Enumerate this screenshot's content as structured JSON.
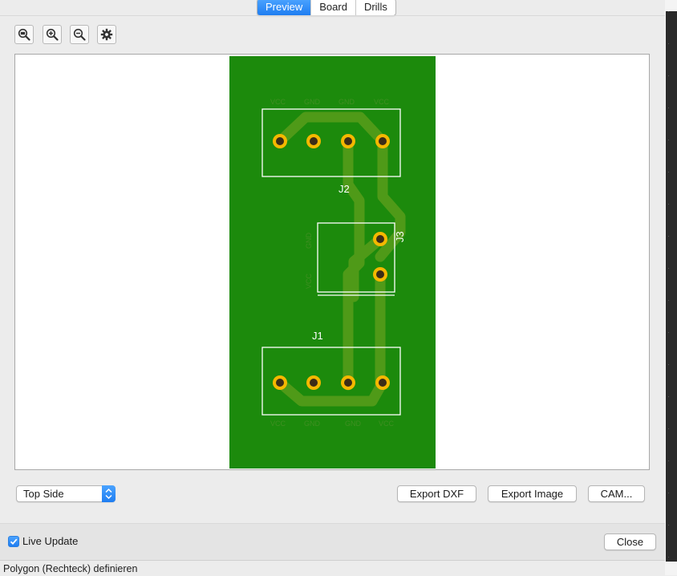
{
  "tabs": [
    {
      "label": "Preview",
      "active": true
    },
    {
      "label": "Board",
      "active": false
    },
    {
      "label": "Drills",
      "active": false
    }
  ],
  "toolbar": {
    "icons": [
      "zoom-fit-icon",
      "zoom-in-icon",
      "zoom-out-icon",
      "gear-icon"
    ]
  },
  "pcb": {
    "board_color": "#1c8a0c",
    "trace_color": "#4f9a18",
    "pad_color": "#f5b800",
    "silk_color": "#ffffff",
    "labels": {
      "j2": "J2",
      "j3": "J3",
      "j1": "J1",
      "j2_pins": [
        "VCC",
        "GND",
        "GND",
        "VCC"
      ],
      "j3_pins": [
        "GND",
        "VCC"
      ],
      "j1_pins": [
        "VCC",
        "GND",
        "GND",
        "VCC"
      ]
    }
  },
  "side_select": {
    "value": "Top Side"
  },
  "buttons": {
    "export_dxf": "Export DXF",
    "export_image": "Export Image",
    "cam": "CAM...",
    "close": "Close"
  },
  "live_update": {
    "label": "Live Update",
    "checked": true
  },
  "status": {
    "text": "Polygon (Rechteck) definieren"
  }
}
